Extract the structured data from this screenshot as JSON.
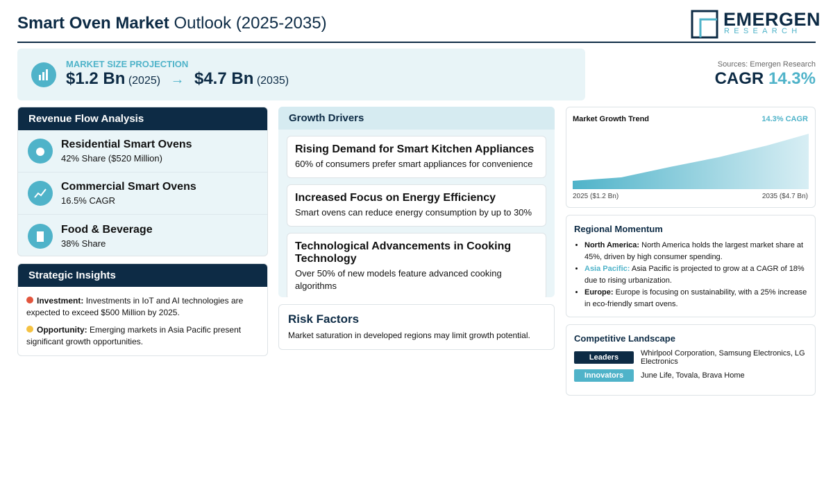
{
  "header": {
    "title_bold": "Smart Oven Market",
    "title_rest": "Outlook (2025-2035)",
    "logo_main": "EMERGEN",
    "logo_sub": "RESEARCH"
  },
  "projection": {
    "label": "MARKET SIZE PROJECTION",
    "start_value": "$1.2 Bn",
    "start_year": "(2025)",
    "arrow": "→",
    "end_value": "$4.7 Bn",
    "end_year": "(2035)"
  },
  "summary": {
    "sources": "Sources: Emergen Research",
    "cagr_label": "CAGR",
    "cagr_value": "14.3%"
  },
  "revenue_flow": {
    "title": "Revenue Flow Analysis",
    "items": [
      {
        "name": "Residential Smart Ovens",
        "detail": "42% Share ($520 Million)"
      },
      {
        "name": "Commercial Smart Ovens",
        "detail": "16.5% CAGR"
      },
      {
        "name": "Food & Beverage",
        "detail": "38% Share"
      }
    ]
  },
  "strategic_insights": {
    "title": "Strategic Insights",
    "items": [
      {
        "label": "Investment:",
        "text": "Investments in IoT and AI technologies are expected to exceed $500 Million by 2025."
      },
      {
        "label": "Opportunity:",
        "text": "Emerging markets in Asia Pacific present significant growth opportunities."
      }
    ]
  },
  "growth_drivers": {
    "title": "Growth Drivers",
    "items": [
      {
        "title": "Rising Demand for Smart Kitchen Appliances",
        "text": "60% of consumers prefer smart appliances for convenience"
      },
      {
        "title": "Increased Focus on Energy Efficiency",
        "text": "Smart ovens can reduce energy consumption by up to 30%"
      },
      {
        "title": "Technological Advancements in Cooking Technology",
        "text": "Over 50% of new models feature advanced cooking algorithms"
      }
    ]
  },
  "risk_factors": {
    "title": "Risk Factors",
    "text": "Market saturation in developed regions may limit growth potential."
  },
  "market_growth_trend": {
    "title": "Market Growth Trend",
    "cagr": "14.3% CAGR",
    "start_label": "2025 ($1.2 Bn)",
    "end_label": "2035 ($4.7 Bn)"
  },
  "regional_momentum": {
    "title": "Regional Momentum",
    "items": [
      {
        "region": "North America:",
        "text": "North America holds the largest market share at 45%, driven by high consumer spending."
      },
      {
        "region": "Asia Pacific:",
        "text": "Asia Pacific is projected to grow at a CAGR of 18% due to rising urbanization."
      },
      {
        "region": "Europe:",
        "text": "Europe is focusing on sustainability, with a 25% increase in eco-friendly smart ovens."
      }
    ]
  },
  "competitive_landscape": {
    "title": "Competitive Landscape",
    "rows": [
      {
        "tag": "Leaders",
        "text": "Whirlpool Corporation, Samsung Electronics, LG Electronics"
      },
      {
        "tag": "Innovators",
        "text": "June Life, Tovala, Brava Home"
      }
    ]
  }
}
